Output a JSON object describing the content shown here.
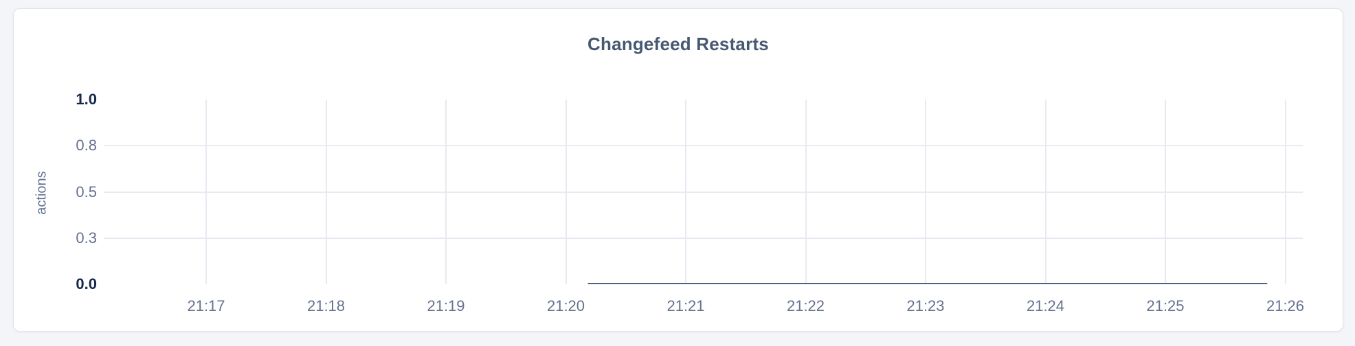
{
  "page": {
    "background_color": "#f4f5f8"
  },
  "card": {
    "background_color": "#ffffff",
    "border_color": "#e2e3e7"
  },
  "chart_data": {
    "type": "line",
    "title": "Changefeed Restarts",
    "ylabel": "actions",
    "xlabel": "",
    "ylim": [
      0,
      1
    ],
    "grid": true,
    "legend_position": "none",
    "colors": {
      "title": "#475872",
      "gridline": "#e8eaf1",
      "axis_tick": "#65718e",
      "axis_tick_emphasis": "#16274a",
      "y_axis_title": "#5f7292"
    },
    "y_ticks": [
      {
        "label": "1.0",
        "position": 1.0,
        "emphasis": true
      },
      {
        "label": "0.8",
        "position": 0.75,
        "emphasis": false
      },
      {
        "label": "0.5",
        "position": 0.5,
        "emphasis": false
      },
      {
        "label": "0.3",
        "position": 0.25,
        "emphasis": false
      },
      {
        "label": "0.0",
        "position": 0.0,
        "emphasis": true
      }
    ],
    "x_ticks": [
      "21:17",
      "21:18",
      "21:19",
      "21:20",
      "21:21",
      "21:22",
      "21:23",
      "21:24",
      "21:25",
      "21:26"
    ],
    "series": [
      {
        "name": "actions",
        "color": "#51607c",
        "points": [
          {
            "time": "21:20:11",
            "value": 0
          },
          {
            "time": "21:25:51",
            "value": 0
          }
        ]
      }
    ]
  }
}
